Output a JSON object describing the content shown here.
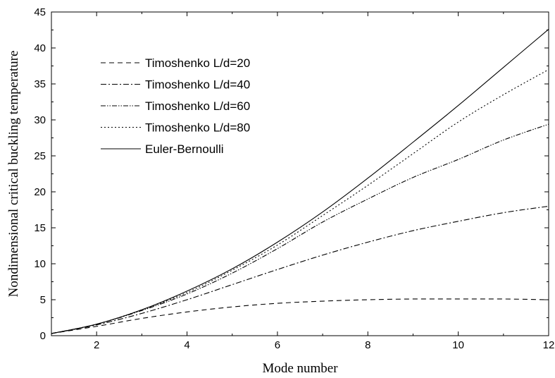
{
  "chart_data": {
    "type": "line",
    "xlabel": "Mode number",
    "ylabel": "Nondimensional critical buckling temperature",
    "xlim": [
      1,
      12
    ],
    "ylim": [
      0,
      45
    ],
    "xticks": [
      2,
      4,
      6,
      8,
      10,
      12
    ],
    "yticks": [
      0,
      5,
      10,
      15,
      20,
      25,
      30,
      35,
      40,
      45
    ],
    "legend_position": "top-left",
    "grid": false,
    "x": [
      1,
      2,
      3,
      4,
      5,
      6,
      7,
      8,
      9,
      10,
      11,
      12
    ],
    "series": [
      {
        "name": "Timoshenko  L/d=20",
        "dash": "dashed",
        "values": [
          0.3,
          1.3,
          2.4,
          3.3,
          4.0,
          4.5,
          4.8,
          5.0,
          5.1,
          5.1,
          5.1,
          5.0
        ]
      },
      {
        "name": "Timoshenko  L/d=40",
        "dash": "dash-dot",
        "values": [
          0.3,
          1.5,
          3.1,
          5.0,
          7.1,
          9.2,
          11.2,
          13.0,
          14.6,
          15.9,
          17.1,
          18.0
        ]
      },
      {
        "name": "Timoshenko  L/d=60",
        "dash": "dash-dot-dot",
        "values": [
          0.3,
          1.6,
          3.5,
          5.8,
          8.7,
          12.1,
          15.8,
          19.0,
          22.0,
          24.5,
          27.2,
          29.4
        ]
      },
      {
        "name": "Timoshenko  L/d=80",
        "dash": "dotted",
        "values": [
          0.3,
          1.6,
          3.6,
          6.0,
          9.1,
          12.6,
          16.7,
          20.9,
          25.3,
          29.7,
          33.5,
          37.0
        ]
      },
      {
        "name": "Euler-Bernoulli",
        "dash": "solid",
        "values": [
          0.3,
          1.6,
          3.6,
          6.2,
          9.3,
          13.0,
          17.2,
          21.9,
          26.9,
          32.0,
          37.3,
          42.6
        ]
      }
    ]
  }
}
